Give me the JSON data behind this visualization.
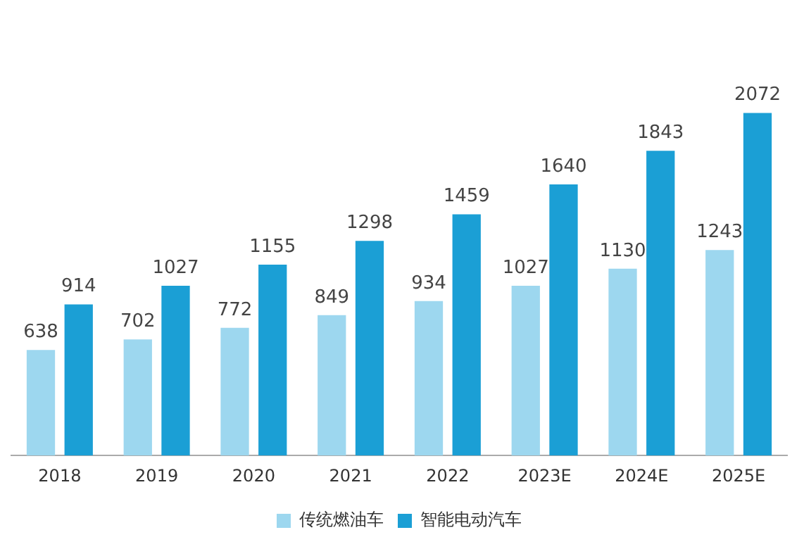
{
  "chart_data": {
    "type": "bar",
    "categories": [
      "2018",
      "2019",
      "2020",
      "2021",
      "2022",
      "2023E",
      "2024E",
      "2025E"
    ],
    "series": [
      {
        "name": "传统燃油车",
        "color": "#9dd7ef",
        "values": [
          638,
          702,
          772,
          849,
          934,
          1027,
          1130,
          1243
        ]
      },
      {
        "name": "智能电动汽车",
        "color": "#1b9fd5",
        "values": [
          914,
          1027,
          1155,
          1298,
          1459,
          1640,
          1843,
          2072
        ]
      }
    ],
    "data_labels": true,
    "legend": "bottom",
    "grid": false
  }
}
